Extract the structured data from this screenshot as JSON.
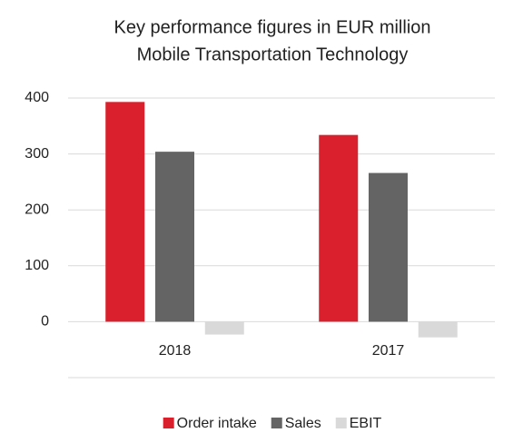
{
  "chart_data": {
    "type": "bar",
    "title": "Key performance figures in EUR million",
    "subtitle": "Mobile Transportation Technology",
    "categories": [
      "2018",
      "2017"
    ],
    "series": [
      {
        "name": "Order intake",
        "color": "#d9202c",
        "values": [
          393,
          334
        ]
      },
      {
        "name": "Sales",
        "color": "#646464",
        "values": [
          304,
          266
        ]
      },
      {
        "name": "EBIT",
        "color": "#d9d9d9",
        "values": [
          -23,
          -28
        ]
      }
    ],
    "ylim": [
      -100,
      400
    ],
    "yticks": [
      0,
      100,
      200,
      300,
      400
    ],
    "grid": true,
    "legend": "bottom"
  }
}
